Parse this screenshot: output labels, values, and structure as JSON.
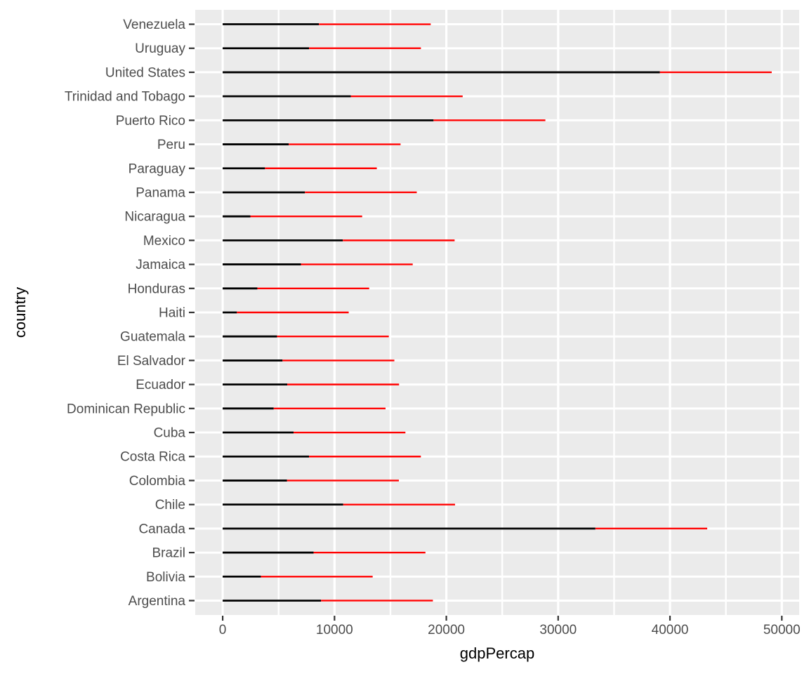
{
  "chart_data": {
    "type": "bar",
    "subtype": "horizontal-segment",
    "orientation": "horizontal",
    "title": "",
    "xlabel": "gdpPercap",
    "ylabel": "country",
    "categories": [
      "Venezuela",
      "Uruguay",
      "United States",
      "Trinidad and Tobago",
      "Puerto Rico",
      "Peru",
      "Paraguay",
      "Panama",
      "Nicaragua",
      "Mexico",
      "Jamaica",
      "Honduras",
      "Haiti",
      "Guatemala",
      "El Salvador",
      "Ecuador",
      "Dominican Republic",
      "Cuba",
      "Costa Rica",
      "Colombia",
      "Chile",
      "Canada",
      "Brazil",
      "Bolivia",
      "Argentina"
    ],
    "series": [
      {
        "name": "gdpPercap (black segment from 0 to value)",
        "color": "#000000",
        "values": [
          8605.0,
          7727.0,
          39097.1,
          11460.6,
          18855.6,
          5909.0,
          3783.7,
          7356.0,
          2474.5,
          10742.4,
          6994.8,
          3099.7,
          1270.4,
          4858.3,
          5351.6,
          5773.0,
          4563.8,
          6340.6,
          7723.4,
          5755.3,
          10778.8,
          33329.0,
          8131.2,
          3413.3,
          8797.6
        ]
      },
      {
        "name": "gdpPercap + 10000 (red segment from value to value + 10000)",
        "color": "#FF0000",
        "values": [
          18605.0,
          17727.0,
          49097.1,
          21460.6,
          28855.6,
          15909.0,
          13783.7,
          17356.0,
          12474.5,
          20742.4,
          16994.8,
          13099.7,
          11270.4,
          14858.3,
          15351.6,
          15773.0,
          14563.8,
          16340.6,
          17723.4,
          15755.3,
          20778.8,
          43329.0,
          18131.2,
          13413.3,
          18797.6
        ]
      }
    ],
    "xticks": [
      0,
      10000,
      20000,
      30000,
      40000,
      50000
    ],
    "xtick_labels": [
      "0",
      "10000",
      "20000",
      "30000",
      "40000",
      "50000"
    ],
    "xlim": [
      0,
      50000
    ],
    "x_expansion": 0.05,
    "grid": true,
    "minor_grid_x": true,
    "legend": false,
    "style": {
      "panel_bg": "#EBEBEB",
      "grid_color": "#FFFFFF",
      "tick_color": "#333333",
      "axis_text_color": "#4D4D4D",
      "axis_title_color": "#000000",
      "segment1_color": "#000000",
      "segment2_color": "#FF0000"
    }
  }
}
